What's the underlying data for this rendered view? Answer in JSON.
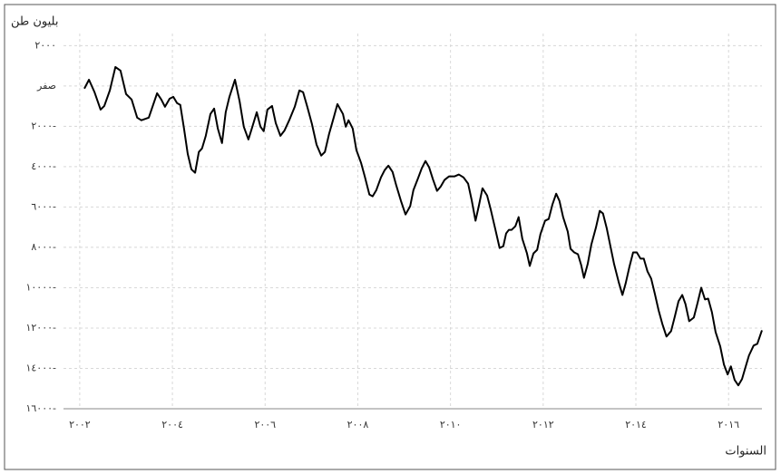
{
  "chart_data": {
    "type": "line",
    "y_label": "بليون طن",
    "x_label": "السنوات",
    "xlim": [
      2001.65,
      2016.72
    ],
    "ylim": [
      -16000,
      2600
    ],
    "xticks": [
      {
        "value": 2002,
        "label": "٢٠٠٢"
      },
      {
        "value": 2004,
        "label": "٢٠٠٤"
      },
      {
        "value": 2006,
        "label": "٢٠٠٦"
      },
      {
        "value": 2008,
        "label": "٢٠٠٨"
      },
      {
        "value": 2010,
        "label": "٢٠١٠"
      },
      {
        "value": 2012,
        "label": "٢٠١٢"
      },
      {
        "value": 2014,
        "label": "٢٠١٤"
      },
      {
        "value": 2016,
        "label": "٢٠١٦"
      }
    ],
    "yticks": [
      {
        "value": 2000,
        "label": "٢٠٠٠"
      },
      {
        "value": 0,
        "label": "صفر"
      },
      {
        "value": -2000,
        "label": "٢٠٠٠-"
      },
      {
        "value": -4000,
        "label": "٤٠٠٠-"
      },
      {
        "value": -6000,
        "label": "٦٠٠٠-"
      },
      {
        "value": -8000,
        "label": "٨٠٠٠-"
      },
      {
        "value": -10000,
        "label": "١٠٠٠٠-"
      },
      {
        "value": -12000,
        "label": "١٢٠٠٠-"
      },
      {
        "value": -14000,
        "label": "١٤٠٠٠-"
      },
      {
        "value": -16000,
        "label": "١٦٠٠٠-"
      }
    ],
    "grid": true,
    "color": "#000000",
    "x": [
      2002.1,
      2002.2,
      2002.32,
      2002.45,
      2002.53,
      2002.65,
      2002.77,
      2002.88,
      2003.0,
      2003.12,
      2003.24,
      2003.33,
      2003.49,
      2003.57,
      2003.67,
      2003.76,
      2003.84,
      2003.94,
      2004.02,
      2004.1,
      2004.17,
      2004.25,
      2004.33,
      2004.41,
      2004.49,
      2004.57,
      2004.64,
      2004.72,
      2004.82,
      2004.9,
      2004.98,
      2005.07,
      2005.15,
      2005.23,
      2005.35,
      2005.45,
      2005.54,
      2005.64,
      2005.72,
      2005.82,
      2005.9,
      2005.97,
      2006.05,
      2006.15,
      2006.23,
      2006.33,
      2006.42,
      2006.52,
      2006.64,
      2006.74,
      2006.82,
      2006.91,
      2007.01,
      2007.11,
      2007.21,
      2007.29,
      2007.38,
      2007.48,
      2007.56,
      2007.68,
      2007.74,
      2007.8,
      2007.89,
      2007.97,
      2008.07,
      2008.15,
      2008.25,
      2008.32,
      2008.4,
      2008.5,
      2008.58,
      2008.66,
      2008.75,
      2008.83,
      2008.93,
      2009.03,
      2009.13,
      2009.2,
      2009.3,
      2009.38,
      2009.46,
      2009.54,
      2009.62,
      2009.71,
      2009.79,
      2009.87,
      2009.97,
      2010.09,
      2010.18,
      2010.28,
      2010.38,
      2010.46,
      2010.54,
      2010.61,
      2010.69,
      2010.79,
      2010.87,
      2010.97,
      2011.06,
      2011.14,
      2011.2,
      2011.26,
      2011.32,
      2011.4,
      2011.47,
      2011.55,
      2011.65,
      2011.71,
      2011.79,
      2011.87,
      2011.94,
      2012.04,
      2012.12,
      2012.2,
      2012.28,
      2012.35,
      2012.43,
      2012.53,
      2012.59,
      2012.67,
      2012.75,
      2012.82,
      2012.88,
      2012.96,
      2013.04,
      2013.14,
      2013.22,
      2013.29,
      2013.37,
      2013.45,
      2013.53,
      2013.63,
      2013.71,
      2013.78,
      2013.86,
      2013.94,
      2014.02,
      2014.1,
      2014.17,
      2014.25,
      2014.33,
      2014.41,
      2014.49,
      2014.57,
      2014.66,
      2014.76,
      2014.84,
      2014.92,
      2015.0,
      2015.07,
      2015.15,
      2015.25,
      2015.33,
      2015.41,
      2015.49,
      2015.56,
      2015.64,
      2015.72,
      2015.82,
      2015.9,
      2015.98,
      2016.05,
      2016.13,
      2016.21,
      2016.29,
      2016.37,
      2016.44,
      2016.54,
      2016.62,
      2016.72
    ],
    "values": [
      -130,
      310,
      -310,
      -1170,
      -990,
      -220,
      940,
      760,
      -400,
      -670,
      -1570,
      -1700,
      -1570,
      -1030,
      -360,
      -670,
      -1030,
      -630,
      -540,
      -850,
      -940,
      -2110,
      -3360,
      -4130,
      -4300,
      -3270,
      -3090,
      -2470,
      -1390,
      -1120,
      -2110,
      -2830,
      -1300,
      -540,
      310,
      -760,
      -2020,
      -2650,
      -2060,
      -1300,
      -2020,
      -2240,
      -1170,
      -990,
      -1840,
      -2470,
      -2200,
      -1700,
      -1030,
      -220,
      -310,
      -1030,
      -1880,
      -2910,
      -3450,
      -3270,
      -2380,
      -1570,
      -900,
      -1390,
      -2020,
      -1700,
      -2110,
      -3180,
      -3810,
      -4480,
      -5380,
      -5470,
      -5160,
      -4530,
      -4170,
      -3950,
      -4260,
      -4930,
      -5690,
      -6370,
      -5960,
      -5160,
      -4570,
      -4080,
      -3720,
      -4040,
      -4620,
      -5200,
      -4980,
      -4660,
      -4480,
      -4480,
      -4390,
      -4530,
      -4840,
      -5690,
      -6680,
      -5960,
      -5070,
      -5430,
      -6140,
      -7130,
      -8030,
      -7940,
      -7310,
      -7130,
      -7130,
      -6950,
      -6500,
      -7580,
      -8300,
      -8920,
      -8300,
      -8120,
      -7350,
      -6680,
      -6590,
      -5870,
      -5340,
      -5690,
      -6500,
      -7220,
      -8070,
      -8250,
      -8340,
      -8880,
      -9510,
      -8830,
      -7850,
      -7000,
      -6190,
      -6320,
      -7040,
      -7940,
      -8830,
      -9730,
      -10360,
      -9780,
      -8970,
      -8250,
      -8250,
      -8560,
      -8560,
      -9190,
      -9550,
      -10310,
      -11120,
      -11790,
      -12420,
      -12150,
      -11430,
      -10670,
      -10360,
      -10810,
      -11660,
      -11480,
      -10760,
      -10000,
      -10580,
      -10540,
      -11210,
      -12200,
      -12910,
      -13810,
      -14300,
      -13900,
      -14570,
      -14840,
      -14530,
      -13900,
      -13360,
      -12870,
      -12780,
      -12110
    ]
  }
}
